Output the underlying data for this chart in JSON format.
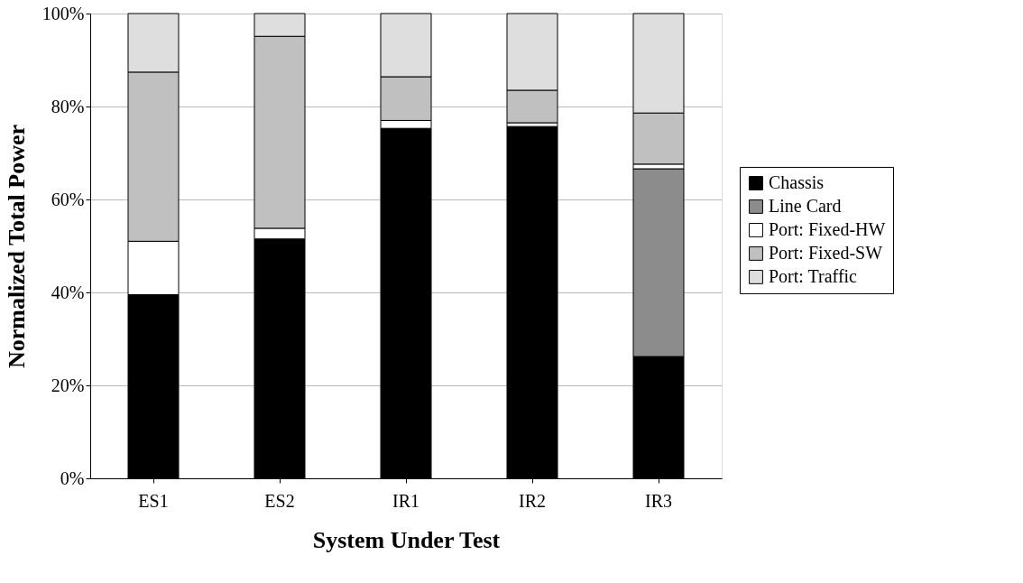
{
  "chart_data": {
    "type": "bar",
    "stacked": true,
    "xlabel": "System Under Test",
    "ylabel": "Normalized Total Power",
    "categories": [
      "ES1",
      "ES2",
      "IR1",
      "IR2",
      "IR3"
    ],
    "series": [
      {
        "name": "Chassis",
        "color": "#000000",
        "values": [
          39.5,
          51.5,
          75.3,
          75.7,
          26.2
        ]
      },
      {
        "name": "Line Card",
        "color": "#8c8c8c",
        "values": [
          0,
          0,
          0,
          0,
          40.4
        ]
      },
      {
        "name": "Port: Fixed-HW",
        "color": "#ffffff",
        "values": [
          11.5,
          2.3,
          1.7,
          0.8,
          1.0
        ]
      },
      {
        "name": "Port: Fixed-SW",
        "color": "#c0c0c0",
        "values": [
          36.4,
          41.3,
          9.4,
          7.0,
          11.0
        ]
      },
      {
        "name": "Port: Traffic",
        "color": "#dedede",
        "values": [
          12.6,
          4.9,
          13.6,
          16.5,
          21.4
        ]
      }
    ],
    "ylim": [
      0,
      100
    ],
    "yticks": [
      {
        "value": 0,
        "label": "0%"
      },
      {
        "value": 20,
        "label": "20%"
      },
      {
        "value": 40,
        "label": "40%"
      },
      {
        "value": 60,
        "label": "60%"
      },
      {
        "value": 80,
        "label": "80%"
      },
      {
        "value": 100,
        "label": "100%"
      }
    ],
    "grid": "y",
    "legend": "right"
  }
}
